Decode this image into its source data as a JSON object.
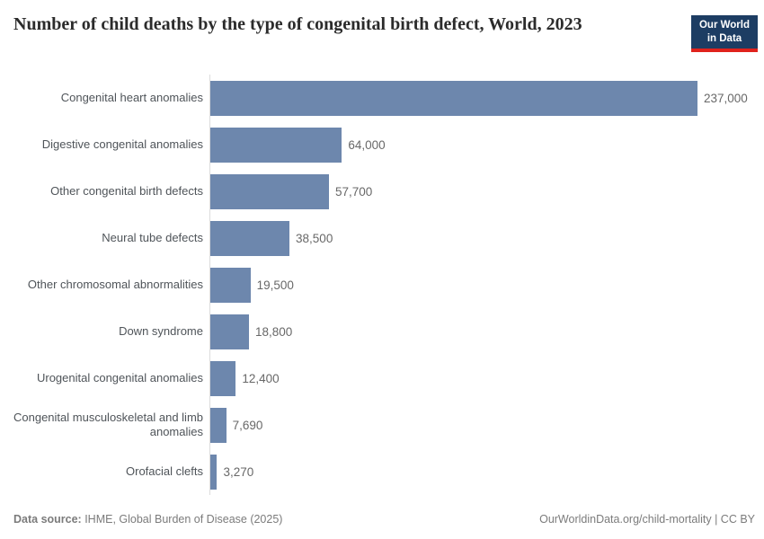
{
  "header": {
    "title": "Number of child deaths by the type of congenital birth defect, World, 2023",
    "logo": {
      "line1": "Our World",
      "line2": "in Data"
    }
  },
  "colors": {
    "bar": "#6d87ad",
    "logo_background": "#1d3d63",
    "logo_underline": "#e0221c",
    "axis_line": "#dcdcdc"
  },
  "chart_data": {
    "type": "bar",
    "orientation": "horizontal",
    "title": "Number of child deaths by the type of congenital birth defect, World, 2023",
    "categories": [
      "Congenital heart anomalies",
      "Digestive congenital anomalies",
      "Other congenital birth defects",
      "Neural tube defects",
      "Other chromosomal abnormalities",
      "Down syndrome",
      "Urogenital congenital anomalies",
      "Congenital musculoskeletal and limb anomalies",
      "Orofacial clefts"
    ],
    "values": [
      237000,
      64000,
      57700,
      38500,
      19500,
      18800,
      12400,
      7690,
      3270
    ],
    "value_labels": [
      "237,000",
      "64,000",
      "57,700",
      "38,500",
      "19,500",
      "18,800",
      "12,400",
      "7,690",
      "3,270"
    ],
    "xlabel": "",
    "ylabel": "",
    "xlim": [
      0,
      237000
    ],
    "grid": false,
    "legend": "none",
    "bar_color": "#6d87ad"
  },
  "footer": {
    "source_label": "Data source:",
    "source_text": " IHME, Global Burden of Disease (2025)",
    "url_text": "OurWorldinData.org/child-mortality",
    "divider": " | ",
    "license": "CC BY"
  }
}
